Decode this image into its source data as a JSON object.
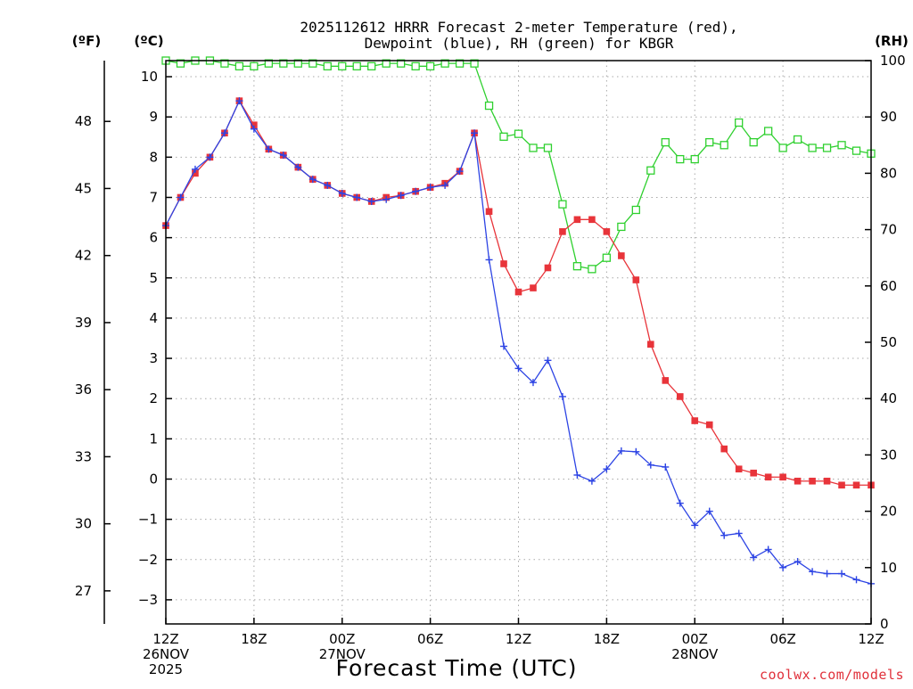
{
  "chart_data": {
    "type": "line",
    "title_lines": [
      "2025112612 HRRR Forecast 2-meter Temperature (red),",
      "Dewpoint (blue), RH (green) for KBGR"
    ],
    "xlabel": "Forecast Time (UTC)",
    "credit": "coolwx.com/models",
    "unit_labels": {
      "f": "(ºF)",
      "c": "(ºC)",
      "rh": "(RH)"
    },
    "x_range_hours": [
      0,
      48
    ],
    "x_ticks": [
      {
        "hour": 0,
        "lines": [
          "12Z",
          "26NOV",
          "2025"
        ]
      },
      {
        "hour": 6,
        "lines": [
          "18Z"
        ]
      },
      {
        "hour": 12,
        "lines": [
          "00Z",
          "27NOV"
        ]
      },
      {
        "hour": 18,
        "lines": [
          "06Z"
        ]
      },
      {
        "hour": 24,
        "lines": [
          "12Z"
        ]
      },
      {
        "hour": 30,
        "lines": [
          "18Z"
        ]
      },
      {
        "hour": 36,
        "lines": [
          "00Z",
          "28NOV"
        ]
      },
      {
        "hour": 42,
        "lines": [
          "06Z"
        ]
      },
      {
        "hour": 48,
        "lines": [
          "12Z"
        ]
      }
    ],
    "y_celsius": {
      "range": [
        -3.6,
        10.4
      ],
      "ticks": [
        -3,
        -2,
        -1,
        0,
        1,
        2,
        3,
        4,
        5,
        6,
        7,
        8,
        9,
        10
      ]
    },
    "y_fahrenheit": {
      "ticks": [
        27,
        30,
        33,
        36,
        39,
        42,
        45,
        48
      ]
    },
    "y_rh": {
      "range": [
        0,
        100
      ],
      "ticks": [
        0,
        10,
        20,
        30,
        40,
        50,
        60,
        70,
        80,
        90,
        100
      ]
    },
    "series": [
      {
        "name": "Temperature",
        "units": "C",
        "color": "#e8343a",
        "marker": "filled-square",
        "values": [
          6.3,
          7.0,
          7.6,
          8.0,
          8.6,
          9.4,
          8.8,
          8.2,
          8.05,
          7.75,
          7.45,
          7.3,
          7.1,
          7.0,
          6.9,
          7.0,
          7.05,
          7.15,
          7.25,
          7.35,
          7.65,
          8.6,
          6.65,
          5.35,
          4.65,
          4.75,
          5.25,
          6.15,
          6.45,
          6.45,
          6.15,
          5.55,
          4.95,
          3.35,
          2.45,
          2.05,
          1.45,
          1.35,
          0.75,
          0.25,
          0.15,
          0.05,
          0.05,
          -0.05,
          -0.05,
          -0.05,
          -0.15,
          -0.15,
          -0.15
        ]
      },
      {
        "name": "Dewpoint",
        "units": "C",
        "color": "#2d44e4",
        "marker": "plus",
        "values": [
          6.3,
          7.0,
          7.7,
          8.0,
          8.6,
          9.4,
          8.7,
          8.2,
          8.05,
          7.75,
          7.45,
          7.3,
          7.1,
          7.0,
          6.9,
          6.95,
          7.05,
          7.15,
          7.25,
          7.3,
          7.65,
          8.6,
          5.45,
          3.3,
          2.75,
          2.4,
          2.95,
          2.05,
          0.1,
          -0.05,
          0.25,
          0.7,
          0.68,
          0.35,
          0.3,
          -0.6,
          -1.15,
          -0.8,
          -1.4,
          -1.35,
          -1.95,
          -1.75,
          -2.2,
          -2.05,
          -2.3,
          -2.35,
          -2.35,
          -2.5,
          -2.6
        ]
      },
      {
        "name": "RH",
        "units": "%",
        "color": "#2fd02f",
        "marker": "open-square",
        "values": [
          100,
          99.5,
          100,
          100,
          99.5,
          99,
          99,
          99.5,
          99.5,
          99.5,
          99.5,
          99,
          99,
          99,
          99,
          99.5,
          99.5,
          99,
          99,
          99.5,
          99.5,
          99.5,
          92,
          86.5,
          87,
          84.5,
          84.5,
          74.5,
          63.5,
          63,
          65,
          70.5,
          73.5,
          80.5,
          85.5,
          82.5,
          82.5,
          85.5,
          85,
          89,
          85.5,
          87.5,
          84.5,
          86,
          84.5,
          84.5,
          85,
          84,
          83.5
        ]
      }
    ]
  }
}
